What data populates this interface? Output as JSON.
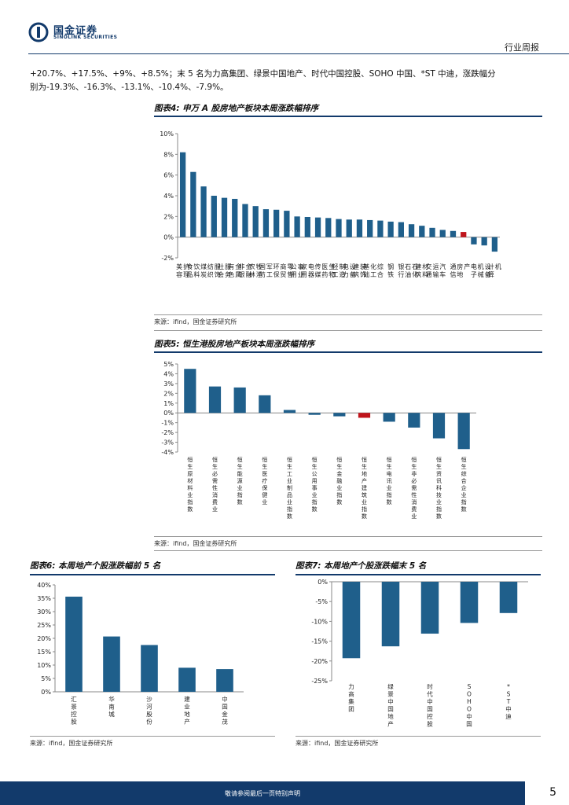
{
  "header": {
    "brand_cn": "国金证券",
    "brand_en": "SINOLINK SECURITIES",
    "section": "行业周报"
  },
  "paragraph": {
    "line1": "+20.7%、+17.5%、+9%、+8.5%；末 5 名为力高集团、绿景中国地产、时代中国控股、SOHO 中国、*ST 中迪，涨跌幅分",
    "line2": "别为-19.3%、-16.3%、-13.1%、-10.4%、-7.9%。"
  },
  "fig4": {
    "title": "图表4:  申万 A 股房地产板块本周涨跌幅排序",
    "source": "来源：ifind，国金证券研究所"
  },
  "fig5": {
    "title": "图表5:  恒生港股房地产板块本周涨跌幅排序",
    "source": "来源：ifind，国金证券研究所"
  },
  "fig6": {
    "title": "图表6:  本周地产个股涨跌幅前 5 名",
    "source": "来源：ifind，国金证券研究所"
  },
  "fig7": {
    "title": "图表7:  本周地产个股涨跌幅末 5 名",
    "source": "来源：ifind，国金证券研究所"
  },
  "footer": {
    "text": "敬请参阅最后一页特别声明",
    "page": "5"
  },
  "colors": {
    "bar": "#1f5f8b",
    "highlight": "#c0141b",
    "brand": "#123a6b"
  },
  "chart_data": [
    {
      "id": "chart4",
      "type": "bar",
      "title": "图表4:  申万 A 股房地产板块本周涨跌幅排序",
      "ylim": [
        -2,
        10
      ],
      "yticks": [
        "10%",
        "8%",
        "6%",
        "4%",
        "2%",
        "0%",
        "-2%"
      ],
      "ytick_values": [
        10,
        8,
        6,
        4,
        2,
        0,
        -2
      ],
      "highlight_category": "房地产",
      "categories": [
        "美容护理",
        "食品饮料",
        "煤炭",
        "纺织服饰",
        "社会服务",
        "有色金属",
        "非银金融",
        "农林牧渔",
        "国防军工",
        "环保",
        "商贸零售",
        "公用事业",
        "家用电器",
        "传媒",
        "医药生物",
        "轻工制造",
        "电力设备",
        "建筑装饰",
        "基础化工",
        "综合",
        "钢铁",
        "银行",
        "石油石化",
        "建筑材料",
        "交通运输",
        "汽车",
        "通信",
        "房地产",
        "电子",
        "机械设备",
        "计算机"
      ],
      "values": [
        8.2,
        6.3,
        4.9,
        4.0,
        3.8,
        3.7,
        3.2,
        3.0,
        2.7,
        2.65,
        2.55,
        2.0,
        1.95,
        1.9,
        1.85,
        1.75,
        1.7,
        1.7,
        1.65,
        1.6,
        1.5,
        1.45,
        1.25,
        1.1,
        0.9,
        0.7,
        0.6,
        0.5,
        -0.7,
        -0.8,
        -1.4
      ]
    },
    {
      "id": "chart5",
      "type": "bar",
      "title": "图表5:  恒生港股房地产板块本周涨跌幅排序",
      "ylim": [
        -4,
        5
      ],
      "yticks": [
        "5%",
        "4%",
        "3%",
        "2%",
        "1%",
        "0%",
        "-1%",
        "-2%",
        "-3%",
        "-4%"
      ],
      "ytick_values": [
        5,
        4,
        3,
        2,
        1,
        0,
        -1,
        -2,
        -3,
        -4
      ],
      "highlight_category": "恒生地产建筑业指数",
      "categories": [
        "恒生原材料业指数",
        "恒生必需性消费业",
        "恒生能源业指数",
        "恒生医疗保健业",
        "恒生工业制品业指数",
        "恒生公用事业指数",
        "恒生金融业指数",
        "恒生地产建筑业指数",
        "恒生电讯业指数",
        "恒生非必需性消费业",
        "恒生资讯科技业指数",
        "恒生综合企业指数"
      ],
      "values": [
        4.5,
        2.7,
        2.6,
        1.8,
        0.3,
        -0.2,
        -0.35,
        -0.5,
        -0.9,
        -1.5,
        -2.6,
        -3.7
      ]
    },
    {
      "id": "chart6",
      "type": "bar",
      "title": "图表6:  本周地产个股涨跌幅前 5 名",
      "ylim": [
        0,
        40
      ],
      "yticks": [
        "40%",
        "35%",
        "30%",
        "25%",
        "20%",
        "15%",
        "10%",
        "5%",
        "0%"
      ],
      "ytick_values": [
        40,
        35,
        30,
        25,
        20,
        15,
        10,
        5,
        0
      ],
      "categories": [
        "汇景控股",
        "华南城",
        "沙河股份",
        "建业地产",
        "中国金茂"
      ],
      "values": [
        35.6,
        20.7,
        17.5,
        9.0,
        8.5
      ]
    },
    {
      "id": "chart7",
      "type": "bar",
      "title": "图表7:  本周地产个股涨跌幅末 5 名",
      "ylim": [
        -25,
        0
      ],
      "yticks": [
        "0%",
        "-5%",
        "-10%",
        "-15%",
        "-20%",
        "-25%"
      ],
      "ytick_values": [
        0,
        -5,
        -10,
        -15,
        -20,
        -25
      ],
      "categories": [
        "力高集团",
        "绿景中国地产",
        "时代中国控股",
        "SOHO中国",
        "*ST中迪"
      ],
      "values": [
        -19.3,
        -16.3,
        -13.1,
        -10.4,
        -7.9
      ]
    }
  ]
}
